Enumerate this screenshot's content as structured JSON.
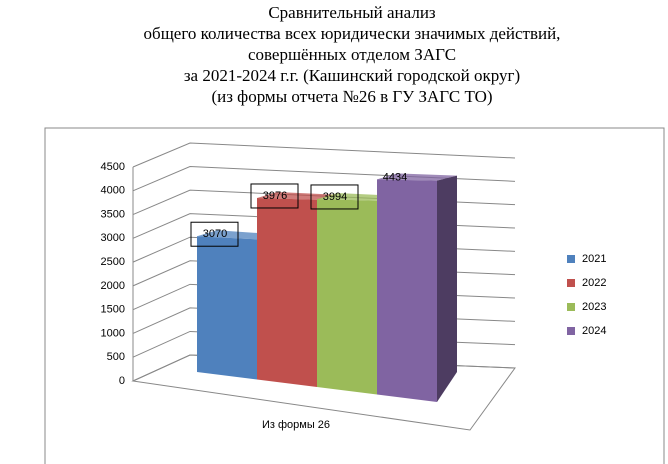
{
  "chart_data": {
    "type": "bar3d",
    "title": [
      "Сравнительный анализ",
      "общего количества всех юридически значимых действий,",
      "совершённых отделом ЗАГС",
      "за 2021-2024 г.г. (Кашинский городской округ)",
      "(из формы отчета №26 в ГУ ЗАГС ТО)"
    ],
    "categories": [
      "Из формы 26"
    ],
    "series": [
      {
        "name": "2021",
        "color": "#4f81bd",
        "values": [
          3070
        ]
      },
      {
        "name": "2022",
        "color": "#c0504d",
        "values": [
          3976
        ]
      },
      {
        "name": "2023",
        "color": "#9bbb59",
        "values": [
          3994
        ]
      },
      {
        "name": "2024",
        "color": "#8064a2",
        "values": [
          4434
        ]
      }
    ],
    "boxed_labels": [
      true,
      true,
      true,
      false
    ],
    "ylim": [
      0,
      4500
    ],
    "yticks": [
      0,
      500,
      1000,
      1500,
      2000,
      2500,
      3000,
      3500,
      4000,
      4500
    ],
    "grid": true,
    "legend": "right"
  }
}
